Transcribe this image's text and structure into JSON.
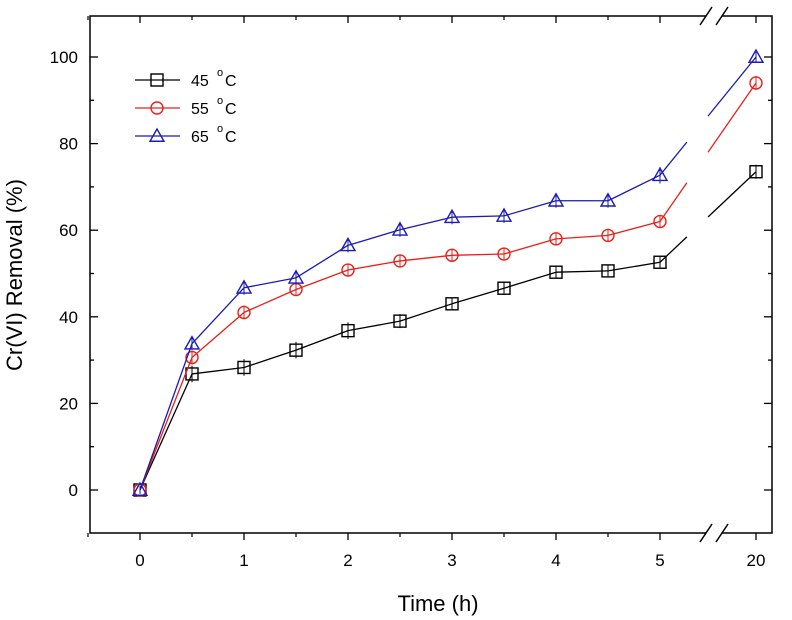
{
  "chart_data": {
    "type": "line",
    "title": "",
    "xlabel": "Time (h)",
    "ylabel": "Cr(VI) Removal (%)",
    "ylim": [
      -10,
      110
    ],
    "y_ticks": [
      "0",
      "20",
      "40",
      "60",
      "80",
      "100"
    ],
    "y_tick_values": [
      0,
      20,
      40,
      60,
      80,
      100
    ],
    "x_ticks": [
      "0",
      "1",
      "2",
      "3",
      "4",
      "5",
      "20"
    ],
    "x_tick_values": [
      0,
      1,
      2,
      3,
      4,
      5,
      20
    ],
    "x_axis_break": "between 5 and 20",
    "x": [
      0,
      0.5,
      1,
      1.5,
      2,
      2.5,
      3,
      3.5,
      4,
      4.5,
      5,
      20
    ],
    "legend_position": "top-left",
    "series": [
      {
        "name": "45 °C",
        "temp": "45",
        "unit": "C",
        "degree": "o",
        "color": "#000000",
        "marker": "square",
        "values": [
          0,
          26.8,
          28.3,
          32.3,
          36.8,
          39.0,
          43.0,
          46.6,
          50.3,
          50.6,
          52.6,
          73.5
        ],
        "errors": [
          0.5,
          1.5,
          1.5,
          1.5,
          1.5,
          1.2,
          1.0,
          1.0,
          1.0,
          1.0,
          0.8,
          1.2
        ]
      },
      {
        "name": "55 °C",
        "temp": "55",
        "unit": "C",
        "degree": "o",
        "color": "#e8201a",
        "marker": "circle",
        "values": [
          0,
          30.6,
          41.0,
          46.3,
          50.8,
          52.9,
          54.2,
          54.5,
          58.0,
          58.8,
          62.0,
          94.0
        ],
        "errors": [
          0.5,
          1.2,
          1.2,
          1.0,
          1.0,
          1.0,
          1.0,
          1.0,
          1.0,
          1.0,
          1.0,
          1.2
        ]
      },
      {
        "name": "65 °C",
        "temp": "65",
        "unit": "C",
        "degree": "o",
        "color": "#1a1ab4",
        "marker": "triangle",
        "values": [
          0,
          33.8,
          46.7,
          49.0,
          56.5,
          60.1,
          63.0,
          63.3,
          66.8,
          66.8,
          72.7,
          100.0
        ],
        "errors": [
          0.5,
          1.0,
          1.2,
          1.2,
          1.2,
          1.2,
          1.2,
          1.2,
          1.2,
          1.2,
          1.5,
          0.8
        ]
      }
    ]
  }
}
